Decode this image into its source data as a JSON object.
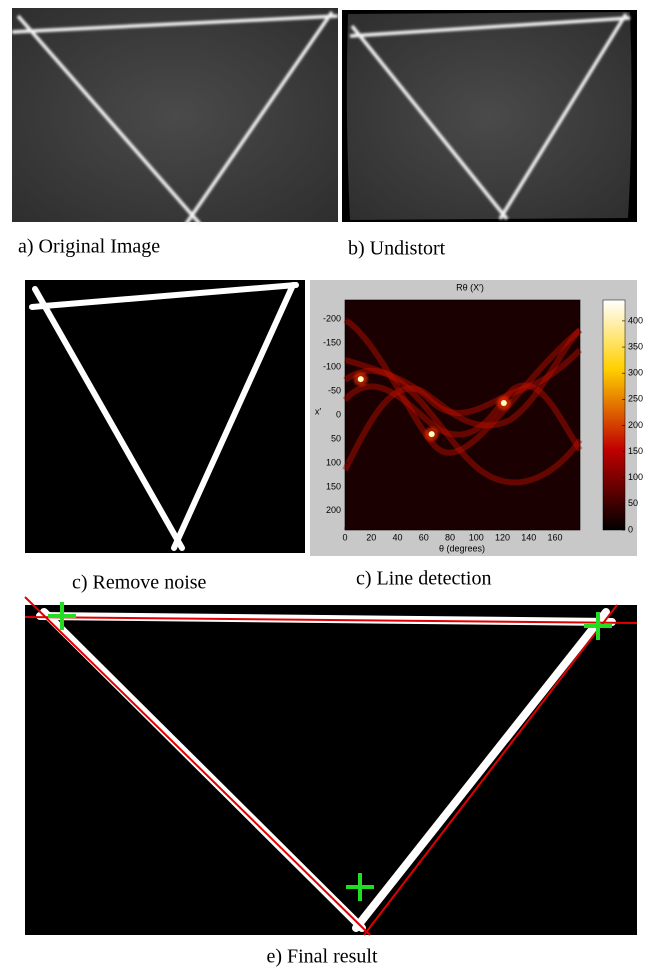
{
  "panels": [
    {
      "caption": "a) Original Image"
    },
    {
      "caption": "b) Undistort"
    },
    {
      "caption": "c) Remove noise"
    },
    {
      "caption": "c) Line detection"
    },
    {
      "caption": "e) Final result"
    }
  ],
  "hough": {
    "title": "Rθ (X′)",
    "xlabel": "θ (degrees)",
    "ylabel": "x′",
    "xlim": [
      0,
      179
    ],
    "ylim": [
      -240,
      240
    ],
    "xticks": [
      0,
      20,
      40,
      60,
      80,
      100,
      120,
      140,
      160
    ],
    "yticks": [
      -200,
      -150,
      -100,
      -50,
      0,
      50,
      100,
      150,
      200
    ],
    "clim": [
      0,
      440
    ],
    "colorbar_ticks": [
      0,
      50,
      100,
      150,
      200,
      250,
      300,
      350,
      400
    ],
    "peaks": [
      {
        "theta": 12,
        "rho": -75
      },
      {
        "theta": 66,
        "rho": 40
      },
      {
        "theta": 121,
        "rho": -25
      }
    ]
  }
}
